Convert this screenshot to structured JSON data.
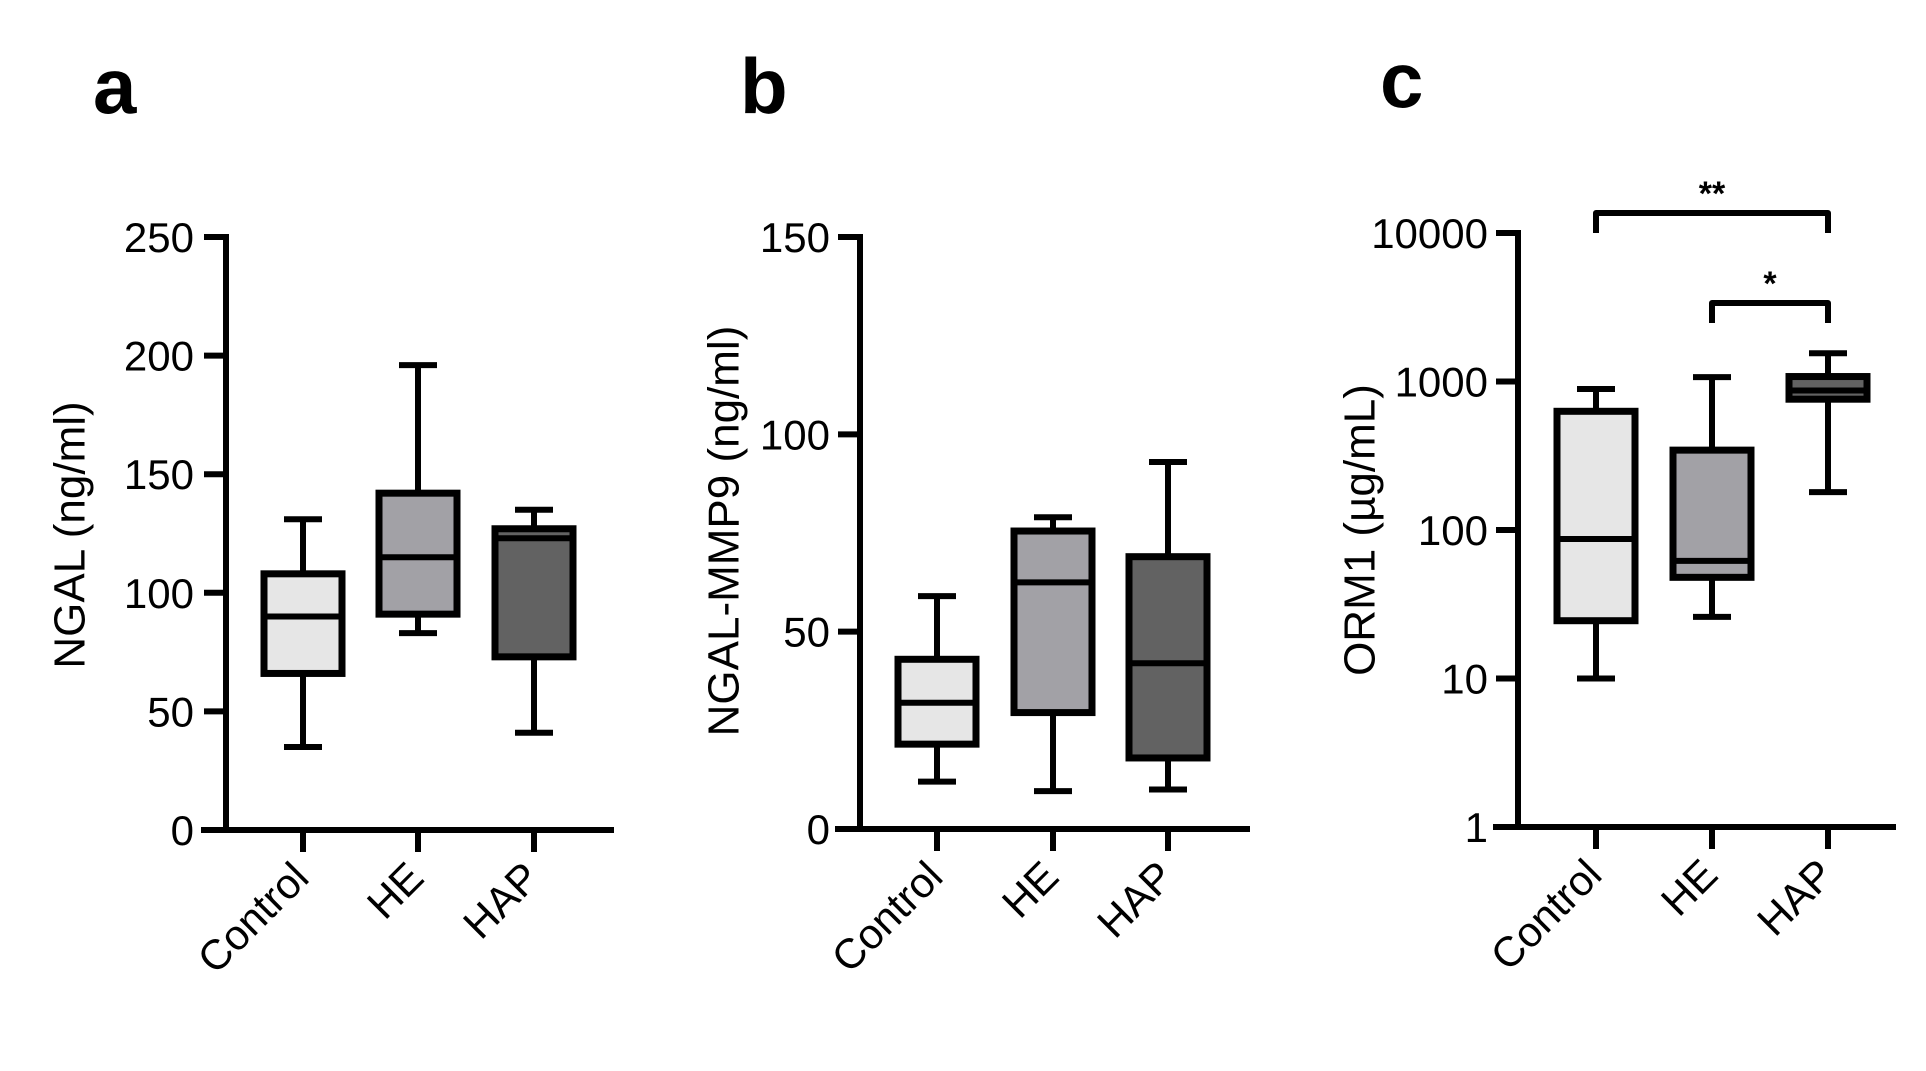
{
  "figure": {
    "panel_letters": [
      "a",
      "b",
      "c"
    ]
  },
  "chart_data": [
    {
      "type": "box",
      "panel": "a",
      "title": "",
      "xlabel": "",
      "ylabel": "NGAL  (ng/ml)",
      "yscale": "linear",
      "ylim": [
        0,
        250
      ],
      "yticks": [
        0,
        50,
        100,
        150,
        200,
        250
      ],
      "ytick_labels": [
        "0",
        "50",
        "100",
        "150",
        "200",
        "250"
      ],
      "categories": [
        "Control",
        "HE",
        "HAP"
      ],
      "fill_colors": [
        "#e6e6e6",
        "#a2a1a6",
        "#626262"
      ],
      "boxes": [
        {
          "min": 35,
          "q1": 66,
          "median": 90,
          "q3": 108,
          "max": 131
        },
        {
          "min": 83,
          "q1": 91,
          "median": 115,
          "q3": 142,
          "max": 196
        },
        {
          "min": 41,
          "q1": 73,
          "median": 123,
          "q3": 127,
          "max": 135
        }
      ],
      "significance": []
    },
    {
      "type": "box",
      "panel": "b",
      "title": "",
      "xlabel": "",
      "ylabel": "NGAL-MMP9 (ng/ml)",
      "yscale": "linear",
      "ylim": [
        0,
        150
      ],
      "yticks": [
        0,
        50,
        100,
        150
      ],
      "ytick_labels": [
        "0",
        "50",
        "100",
        "150"
      ],
      "categories": [
        "Control",
        "HE",
        "HAP"
      ],
      "fill_colors": [
        "#e6e6e6",
        "#a2a1a6",
        "#626262"
      ],
      "boxes": [
        {
          "min": 12,
          "q1": 21.5,
          "median": 32,
          "q3": 43,
          "max": 59
        },
        {
          "min": 9.6,
          "q1": 29.5,
          "median": 62.5,
          "q3": 75.5,
          "max": 79
        },
        {
          "min": 10,
          "q1": 18,
          "median": 42,
          "q3": 69,
          "max": 93
        }
      ],
      "significance": []
    },
    {
      "type": "box",
      "panel": "c",
      "title": "",
      "xlabel": "",
      "ylabel": "ORM1  (µg/mL)",
      "yscale": "log",
      "ylim": [
        1,
        10000
      ],
      "yticks": [
        1,
        10,
        100,
        1000,
        10000
      ],
      "ytick_labels": [
        "1",
        "10",
        "100",
        "1000",
        "10000"
      ],
      "categories": [
        "Control",
        "HE",
        "HAP"
      ],
      "fill_colors": [
        "#e6e6e6",
        "#a2a1a6",
        "#626262"
      ],
      "boxes": [
        {
          "min": 10,
          "q1": 24.5,
          "median": 87,
          "q3": 630,
          "max": 890
        },
        {
          "min": 26,
          "q1": 48,
          "median": 62,
          "q3": 345,
          "max": 1070
        },
        {
          "min": 180,
          "q1": 760,
          "median": 870,
          "q3": 1080,
          "max": 1550
        }
      ],
      "significance": [
        {
          "from": "Control",
          "to": "HAP",
          "label": "**",
          "level": 2
        },
        {
          "from": "HE",
          "to": "HAP",
          "label": "*",
          "level": 1
        }
      ]
    }
  ]
}
